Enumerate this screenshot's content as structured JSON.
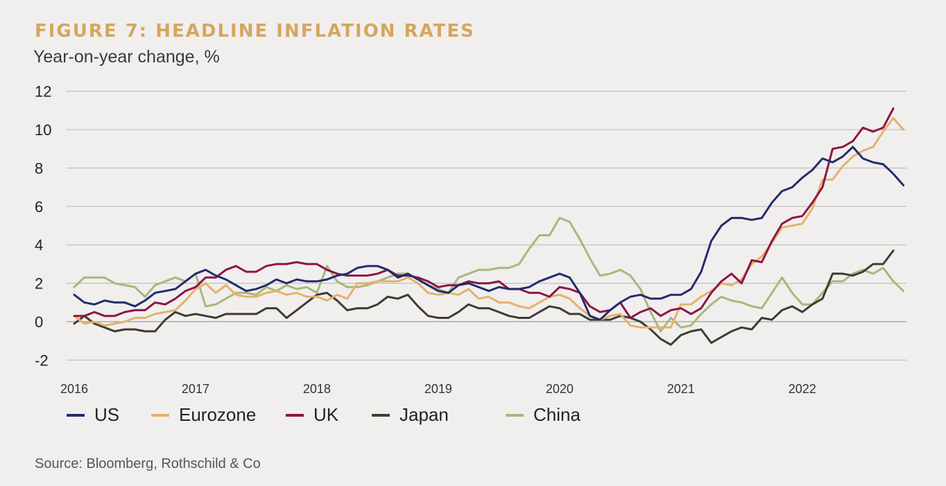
{
  "header": {
    "title": "FIGURE 7: HEADLINE INFLATION RATES",
    "subtitle": "Year-on-year change, %"
  },
  "footer": {
    "source": "Source: Bloomberg, Rothschild & Co"
  },
  "chart_data": {
    "type": "line",
    "title": "FIGURE 7: HEADLINE INFLATION RATES",
    "subtitle": "Year-on-year change, %",
    "xlabel": "",
    "ylabel": "",
    "x_start": "2016-01",
    "x_end": "2022-11",
    "x_ticks": [
      "2016",
      "2017",
      "2018",
      "2019",
      "2020",
      "2021",
      "2022"
    ],
    "y_ticks": [
      12,
      10,
      8,
      6,
      4,
      2,
      0,
      -2
    ],
    "ylim": [
      -2,
      12
    ],
    "grid": "horizontal",
    "legend": "bottom",
    "series": [
      {
        "name": "US",
        "color": "#1f2d6b",
        "values": [
          1.4,
          1.0,
          0.9,
          1.1,
          1.0,
          1.0,
          0.8,
          1.1,
          1.5,
          1.6,
          1.7,
          2.1,
          2.5,
          2.7,
          2.4,
          2.2,
          1.9,
          1.6,
          1.7,
          1.9,
          2.2,
          2.0,
          2.2,
          2.1,
          2.1,
          2.2,
          2.4,
          2.5,
          2.8,
          2.9,
          2.9,
          2.7,
          2.3,
          2.5,
          2.2,
          1.9,
          1.6,
          1.5,
          1.9,
          2.0,
          1.8,
          1.6,
          1.8,
          1.7,
          1.7,
          1.8,
          2.1,
          2.3,
          2.5,
          2.3,
          1.5,
          0.3,
          0.1,
          0.6,
          1.0,
          1.3,
          1.4,
          1.2,
          1.2,
          1.4,
          1.4,
          1.7,
          2.6,
          4.2,
          5.0,
          5.4,
          5.4,
          5.3,
          5.4,
          6.2,
          6.8,
          7.0,
          7.5,
          7.9,
          8.5,
          8.3,
          8.6,
          9.1,
          8.5,
          8.3,
          8.2,
          7.7,
          7.1
        ]
      },
      {
        "name": "Eurozone",
        "color": "#e3b26a",
        "values": [
          0.3,
          -0.1,
          0.0,
          -0.2,
          -0.1,
          0.0,
          0.2,
          0.2,
          0.4,
          0.5,
          0.6,
          1.1,
          1.7,
          2.0,
          1.5,
          1.9,
          1.4,
          1.3,
          1.3,
          1.5,
          1.6,
          1.4,
          1.5,
          1.3,
          1.3,
          1.1,
          1.4,
          1.2,
          2.0,
          2.0,
          2.1,
          2.1,
          2.1,
          2.3,
          2.0,
          1.5,
          1.4,
          1.5,
          1.4,
          1.7,
          1.2,
          1.3,
          1.0,
          1.0,
          0.8,
          0.7,
          1.0,
          1.3,
          1.4,
          1.2,
          0.7,
          0.3,
          0.1,
          0.3,
          0.4,
          -0.2,
          -0.3,
          -0.3,
          -0.3,
          -0.3,
          0.9,
          0.9,
          1.3,
          1.6,
          2.0,
          1.9,
          2.2,
          3.0,
          3.4,
          4.1,
          4.9,
          5.0,
          5.1,
          5.9,
          7.4,
          7.4,
          8.1,
          8.6,
          8.9,
          9.1,
          9.9,
          10.6,
          10.0
        ]
      },
      {
        "name": "UK",
        "color": "#8c1645",
        "values": [
          0.3,
          0.3,
          0.5,
          0.3,
          0.3,
          0.5,
          0.6,
          0.6,
          1.0,
          0.9,
          1.2,
          1.6,
          1.8,
          2.3,
          2.3,
          2.7,
          2.9,
          2.6,
          2.6,
          2.9,
          3.0,
          3.0,
          3.1,
          3.0,
          3.0,
          2.7,
          2.5,
          2.4,
          2.4,
          2.4,
          2.5,
          2.7,
          2.4,
          2.4,
          2.3,
          2.1,
          1.8,
          1.9,
          1.9,
          2.1,
          2.0,
          2.0,
          2.1,
          1.7,
          1.7,
          1.5,
          1.5,
          1.3,
          1.8,
          1.7,
          1.5,
          0.8,
          0.5,
          0.6,
          1.0,
          0.2,
          0.5,
          0.7,
          0.3,
          0.6,
          0.7,
          0.4,
          0.7,
          1.5,
          2.1,
          2.5,
          2.0,
          3.2,
          3.1,
          4.2,
          5.1,
          5.4,
          5.5,
          6.2,
          7.0,
          9.0,
          9.1,
          9.4,
          10.1,
          9.9,
          10.1,
          11.1
        ]
      },
      {
        "name": "Japan",
        "color": "#3e3c31",
        "values": [
          -0.1,
          0.3,
          -0.1,
          -0.3,
          -0.5,
          -0.4,
          -0.4,
          -0.5,
          -0.5,
          0.1,
          0.5,
          0.3,
          0.4,
          0.3,
          0.2,
          0.4,
          0.4,
          0.4,
          0.4,
          0.7,
          0.7,
          0.2,
          0.6,
          1.0,
          1.4,
          1.5,
          1.1,
          0.6,
          0.7,
          0.7,
          0.9,
          1.3,
          1.2,
          1.4,
          0.8,
          0.3,
          0.2,
          0.2,
          0.5,
          0.9,
          0.7,
          0.7,
          0.5,
          0.3,
          0.2,
          0.2,
          0.5,
          0.8,
          0.7,
          0.4,
          0.4,
          0.1,
          0.1,
          0.1,
          0.3,
          0.2,
          0.0,
          -0.4,
          -0.9,
          -1.2,
          -0.7,
          -0.5,
          -0.4,
          -1.1,
          -0.8,
          -0.5,
          -0.3,
          -0.4,
          0.2,
          0.1,
          0.6,
          0.8,
          0.5,
          0.9,
          1.2,
          2.5,
          2.5,
          2.4,
          2.6,
          3.0,
          3.0,
          3.7
        ]
      },
      {
        "name": "China",
        "color": "#a7b87a",
        "values": [
          1.8,
          2.3,
          2.3,
          2.3,
          2.0,
          1.9,
          1.8,
          1.3,
          1.9,
          2.1,
          2.3,
          2.1,
          2.5,
          0.8,
          0.9,
          1.2,
          1.5,
          1.5,
          1.4,
          1.8,
          1.6,
          1.9,
          1.7,
          1.8,
          1.5,
          2.9,
          2.1,
          1.8,
          1.8,
          1.9,
          2.1,
          2.3,
          2.5,
          2.5,
          2.2,
          1.9,
          1.7,
          1.5,
          2.3,
          2.5,
          2.7,
          2.7,
          2.8,
          2.8,
          3.0,
          3.8,
          4.5,
          4.5,
          5.4,
          5.2,
          4.3,
          3.3,
          2.4,
          2.5,
          2.7,
          2.4,
          1.7,
          0.5,
          -0.5,
          0.2,
          -0.3,
          -0.2,
          0.4,
          0.9,
          1.3,
          1.1,
          1.0,
          0.8,
          0.7,
          1.5,
          2.3,
          1.5,
          0.9,
          0.9,
          1.5,
          2.1,
          2.1,
          2.5,
          2.7,
          2.5,
          2.8,
          2.1,
          1.6
        ]
      }
    ]
  }
}
